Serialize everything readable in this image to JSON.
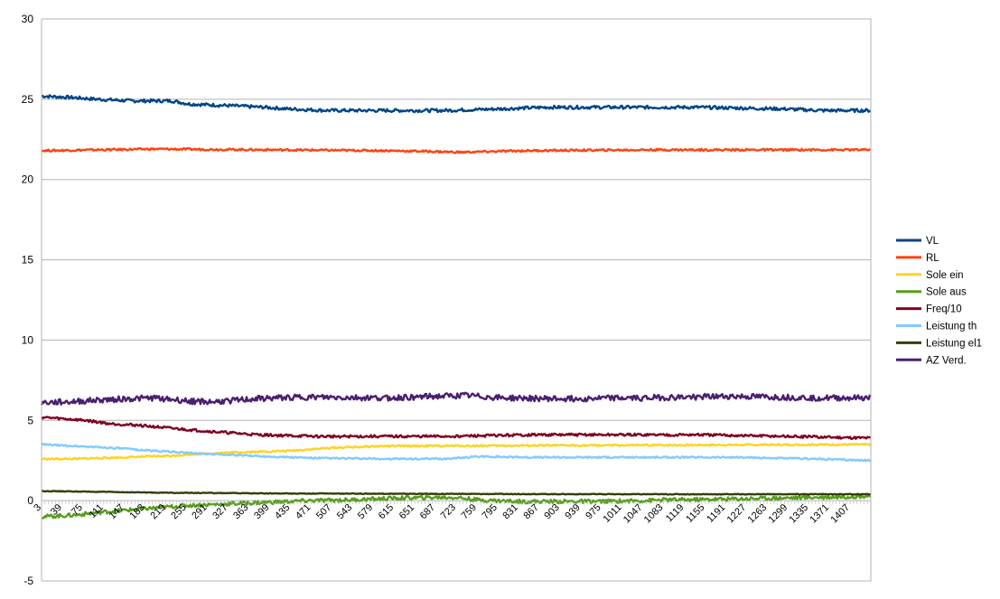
{
  "chart_data": {
    "type": "line",
    "title": "",
    "xlabel": "",
    "ylabel": "",
    "ylim": [
      -5,
      30
    ],
    "yticks": [
      -5,
      0,
      5,
      10,
      15,
      20,
      25,
      30
    ],
    "x_range": [
      3,
      1443
    ],
    "x_tick_labels": [
      "3",
      "39",
      "75",
      "111",
      "147",
      "183",
      "219",
      "255",
      "291",
      "327",
      "363",
      "399",
      "435",
      "471",
      "507",
      "543",
      "579",
      "615",
      "651",
      "687",
      "723",
      "759",
      "795",
      "831",
      "867",
      "903",
      "939",
      "975",
      "1011",
      "1047",
      "1083",
      "1119",
      "1155",
      "1191",
      "1227",
      "1263",
      "1299",
      "1335",
      "1371",
      "1407"
    ],
    "grid": "horizontal",
    "legend": "right",
    "series": [
      {
        "name": "VL",
        "color": "#004586",
        "x": [
          3,
          60,
          100,
          160,
          230,
          260,
          330,
          390,
          430,
          500,
          700,
          800,
          880,
          1060,
          1140,
          1290,
          1360,
          1443
        ],
        "y": [
          25.2,
          25.1,
          25.0,
          24.9,
          24.9,
          24.7,
          24.6,
          24.5,
          24.4,
          24.3,
          24.3,
          24.4,
          24.5,
          24.5,
          24.5,
          24.4,
          24.3,
          24.3
        ]
      },
      {
        "name": "RL",
        "color": "#ff420e",
        "x": [
          3,
          100,
          200,
          400,
          600,
          680,
          730,
          790,
          850,
          1060,
          1200,
          1443
        ],
        "y": [
          21.8,
          21.85,
          21.9,
          21.85,
          21.8,
          21.75,
          21.7,
          21.75,
          21.8,
          21.85,
          21.85,
          21.85
        ]
      },
      {
        "name": "Sole ein",
        "color": "#ffd320",
        "x": [
          3,
          60,
          100,
          150,
          230,
          270,
          330,
          430,
          470,
          510,
          600,
          1443
        ],
        "y": [
          2.6,
          2.6,
          2.65,
          2.7,
          2.8,
          2.9,
          3.0,
          3.1,
          3.2,
          3.3,
          3.4,
          3.5
        ]
      },
      {
        "name": "Sole aus",
        "color": "#579d1c",
        "x": [
          3,
          60,
          111,
          183,
          255,
          327,
          399,
          471,
          543,
          615,
          687,
          723,
          759,
          795,
          831,
          903,
          975,
          1047,
          1083,
          1119,
          1191,
          1263,
          1335,
          1407,
          1443
        ],
        "y": [
          -1.0,
          -0.9,
          -0.7,
          -0.5,
          -0.3,
          -0.2,
          -0.1,
          0.0,
          0.05,
          0.15,
          0.2,
          0.2,
          0.05,
          0.0,
          -0.05,
          -0.05,
          -0.05,
          0.0,
          0.05,
          0.05,
          0.1,
          0.15,
          0.2,
          0.25,
          0.3
        ]
      },
      {
        "name": "Freq/10",
        "color": "#7e0021",
        "x": [
          3,
          40,
          80,
          120,
          170,
          230,
          300,
          380,
          480,
          700,
          860,
          1000,
          1140,
          1300,
          1443
        ],
        "y": [
          5.2,
          5.1,
          5.0,
          4.8,
          4.7,
          4.5,
          4.3,
          4.1,
          4.0,
          4.0,
          4.1,
          4.1,
          4.1,
          4.0,
          3.9
        ]
      },
      {
        "name": "Leistung th",
        "color": "#83caff",
        "x": [
          3,
          60,
          120,
          200,
          270,
          330,
          400,
          480,
          600,
          700,
          760,
          850,
          1000,
          1200,
          1350,
          1443
        ],
        "y": [
          3.5,
          3.4,
          3.3,
          3.1,
          2.95,
          2.85,
          2.75,
          2.65,
          2.6,
          2.6,
          2.75,
          2.7,
          2.7,
          2.7,
          2.6,
          2.5
        ]
      },
      {
        "name": "Leistung el1",
        "color": "#314004",
        "x": [
          3,
          200,
          400,
          700,
          1000,
          1443
        ],
        "y": [
          0.6,
          0.5,
          0.45,
          0.42,
          0.4,
          0.4
        ]
      },
      {
        "name": "AZ Verd.",
        "color": "#4b1f6f",
        "x": [
          3,
          50,
          120,
          200,
          260,
          300,
          380,
          450,
          600,
          740,
          800,
          900,
          1050,
          1200,
          1350,
          1443
        ],
        "y": [
          6.1,
          6.15,
          6.3,
          6.4,
          6.2,
          6.15,
          6.35,
          6.45,
          6.4,
          6.55,
          6.4,
          6.35,
          6.4,
          6.5,
          6.4,
          6.4
        ]
      }
    ]
  }
}
